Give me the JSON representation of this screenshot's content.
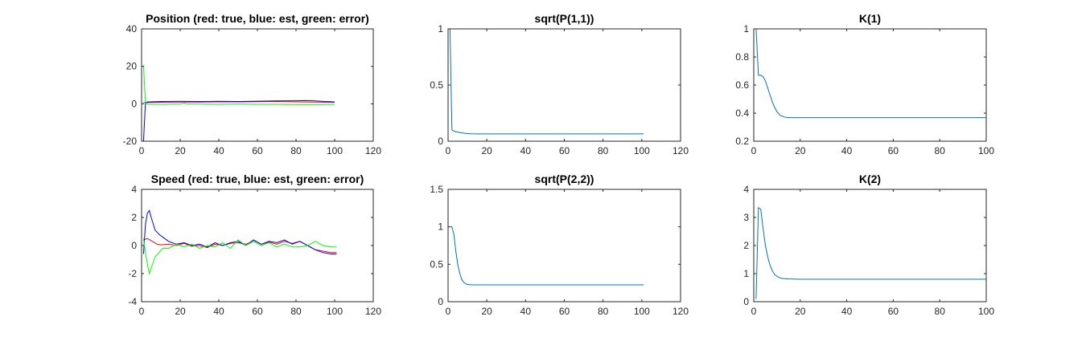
{
  "chart_data": [
    {
      "type": "line",
      "title": "Position (red: true, blue: est, green: error)",
      "xlim": [
        0,
        120
      ],
      "ylim": [
        -20,
        40
      ],
      "xticks": [
        0,
        20,
        40,
        60,
        80,
        100,
        120
      ],
      "yticks": [
        -20,
        0,
        20,
        40
      ],
      "grid": false,
      "series": [
        {
          "color": "#ff0000",
          "x": [
            1,
            10,
            20,
            30,
            40,
            50,
            60,
            70,
            80,
            90,
            100
          ],
          "y": [
            0.6,
            0.8,
            0.9,
            0.9,
            1.0,
            1.0,
            1.1,
            1.2,
            1.0,
            0.9,
            0.8
          ]
        },
        {
          "color": "#0000ff",
          "x": [
            1,
            2,
            3,
            10,
            20,
            30,
            40,
            50,
            60,
            70,
            80,
            85,
            90,
            95,
            100
          ],
          "y": [
            -20,
            0.5,
            1.0,
            1.2,
            1.3,
            1.2,
            1.3,
            1.2,
            1.4,
            1.5,
            1.6,
            1.7,
            1.5,
            1.2,
            1.0
          ]
        },
        {
          "color": "#00ff00",
          "x": [
            1,
            2,
            3,
            10,
            20,
            22,
            24,
            30,
            40,
            50,
            60,
            70,
            80,
            90,
            100
          ],
          "y": [
            20.5,
            0.5,
            -0.3,
            -0.3,
            -0.2,
            0.4,
            -0.2,
            -0.2,
            -0.3,
            -0.2,
            -0.3,
            -0.3,
            -0.4,
            -0.4,
            -0.3
          ]
        }
      ]
    },
    {
      "type": "line",
      "title": "sqrt(P(1,1))",
      "xlim": [
        0,
        120
      ],
      "ylim": [
        0,
        1
      ],
      "xticks": [
        0,
        20,
        40,
        60,
        80,
        100,
        120
      ],
      "yticks": [
        0,
        0.5,
        1
      ],
      "grid": false,
      "series": [
        {
          "color": "#0072bd",
          "x": [
            1,
            2,
            3,
            4,
            6,
            8,
            10,
            12,
            15,
            20,
            40,
            60,
            80,
            101
          ],
          "y": [
            1.0,
            0.1,
            0.09,
            0.085,
            0.078,
            0.072,
            0.068,
            0.066,
            0.065,
            0.065,
            0.065,
            0.065,
            0.065,
            0.065
          ]
        }
      ]
    },
    {
      "type": "line",
      "title": "K(1)",
      "xlim": [
        0,
        100
      ],
      "ylim": [
        0.2,
        1
      ],
      "xticks": [
        0,
        20,
        40,
        60,
        80,
        100
      ],
      "yticks": [
        0.2,
        0.4,
        0.6,
        0.8,
        1
      ],
      "grid": false,
      "series": [
        {
          "color": "#0072bd",
          "x": [
            1,
            2,
            3,
            4,
            5,
            6,
            7,
            8,
            9,
            10,
            11,
            12,
            13,
            14,
            15,
            20,
            40,
            60,
            80,
            100
          ],
          "y": [
            1.0,
            0.67,
            0.67,
            0.66,
            0.63,
            0.58,
            0.53,
            0.48,
            0.44,
            0.41,
            0.39,
            0.38,
            0.373,
            0.37,
            0.368,
            0.368,
            0.368,
            0.368,
            0.368,
            0.368
          ]
        }
      ]
    },
    {
      "type": "line",
      "title": "Speed (red: true, blue: est, green: error)",
      "xlim": [
        0,
        120
      ],
      "ylim": [
        -4,
        4
      ],
      "xticks": [
        0,
        20,
        40,
        60,
        80,
        100,
        120
      ],
      "yticks": [
        -4,
        -2,
        0,
        2,
        4
      ],
      "grid": false,
      "series": [
        {
          "color": "#ff0000",
          "x": [
            1,
            3,
            5,
            8,
            10,
            14,
            18,
            22,
            26,
            30,
            34,
            38,
            42,
            46,
            50,
            54,
            58,
            62,
            66,
            70,
            74,
            78,
            82,
            86,
            90,
            94,
            98,
            101
          ],
          "y": [
            0.4,
            0.5,
            0.35,
            0.1,
            0.05,
            0.1,
            0.0,
            0.15,
            -0.05,
            0.0,
            -0.15,
            0.1,
            0.0,
            0.15,
            0.2,
            0.1,
            0.3,
            0.0,
            0.25,
            0.1,
            0.3,
            0.15,
            0.3,
            0.0,
            -0.3,
            -0.4,
            -0.5,
            -0.5
          ]
        },
        {
          "color": "#0000ff",
          "x": [
            1,
            2,
            3,
            4,
            5,
            7,
            9,
            12,
            14,
            18,
            22,
            26,
            30,
            34,
            38,
            42,
            46,
            50,
            54,
            58,
            62,
            66,
            70,
            74,
            78,
            82,
            86,
            90,
            94,
            98,
            101
          ],
          "y": [
            -0.6,
            1.5,
            2.3,
            2.5,
            2.0,
            1.1,
            0.8,
            0.5,
            0.3,
            0.1,
            0.2,
            0.0,
            0.1,
            -0.1,
            0.2,
            0.0,
            0.2,
            0.3,
            0.0,
            0.4,
            0.1,
            0.3,
            0.2,
            0.4,
            0.1,
            0.3,
            0.0,
            -0.3,
            -0.5,
            -0.6,
            -0.6
          ]
        },
        {
          "color": "#00ff00",
          "x": [
            1,
            2,
            3,
            4,
            5,
            7,
            9,
            11,
            14,
            18,
            22,
            26,
            30,
            34,
            38,
            42,
            46,
            50,
            54,
            58,
            62,
            66,
            70,
            74,
            78,
            82,
            86,
            90,
            94,
            98,
            101
          ],
          "y": [
            0.5,
            -0.5,
            -1.3,
            -2.0,
            -1.6,
            -0.8,
            -0.5,
            -0.2,
            -0.2,
            0.1,
            -0.1,
            0.1,
            -0.2,
            0.0,
            -0.1,
            0.2,
            -0.2,
            0.4,
            0.0,
            0.3,
            0.0,
            0.2,
            -0.1,
            0.1,
            -0.1,
            -0.1,
            0.0,
            0.3,
            0.0,
            -0.1,
            -0.1
          ]
        }
      ]
    },
    {
      "type": "line",
      "title": "sqrt(P(2,2))",
      "xlim": [
        0,
        120
      ],
      "ylim": [
        0,
        1.5
      ],
      "xticks": [
        0,
        20,
        40,
        60,
        80,
        100,
        120
      ],
      "yticks": [
        0,
        0.5,
        1,
        1.5
      ],
      "grid": false,
      "series": [
        {
          "color": "#0072bd",
          "x": [
            1,
            2,
            3,
            4,
            5,
            6,
            7,
            8,
            9,
            10,
            12,
            15,
            20,
            40,
            60,
            80,
            101
          ],
          "y": [
            1.0,
            1.0,
            0.9,
            0.68,
            0.5,
            0.38,
            0.3,
            0.26,
            0.24,
            0.23,
            0.225,
            0.225,
            0.225,
            0.225,
            0.225,
            0.225,
            0.225
          ]
        }
      ]
    },
    {
      "type": "line",
      "title": "K(2)",
      "xlim": [
        0,
        100
      ],
      "ylim": [
        0,
        4
      ],
      "xticks": [
        0,
        20,
        40,
        60,
        80,
        100
      ],
      "yticks": [
        0,
        1,
        2,
        3,
        4
      ],
      "grid": false,
      "series": [
        {
          "color": "#0072bd",
          "x": [
            1,
            2,
            3,
            4,
            5,
            6,
            7,
            8,
            9,
            10,
            11,
            12,
            13,
            15,
            20,
            40,
            60,
            80,
            100
          ],
          "y": [
            0.1,
            3.35,
            3.3,
            2.6,
            2.0,
            1.6,
            1.3,
            1.1,
            0.97,
            0.9,
            0.86,
            0.83,
            0.82,
            0.81,
            0.8,
            0.8,
            0.8,
            0.8,
            0.8
          ]
        }
      ]
    }
  ]
}
